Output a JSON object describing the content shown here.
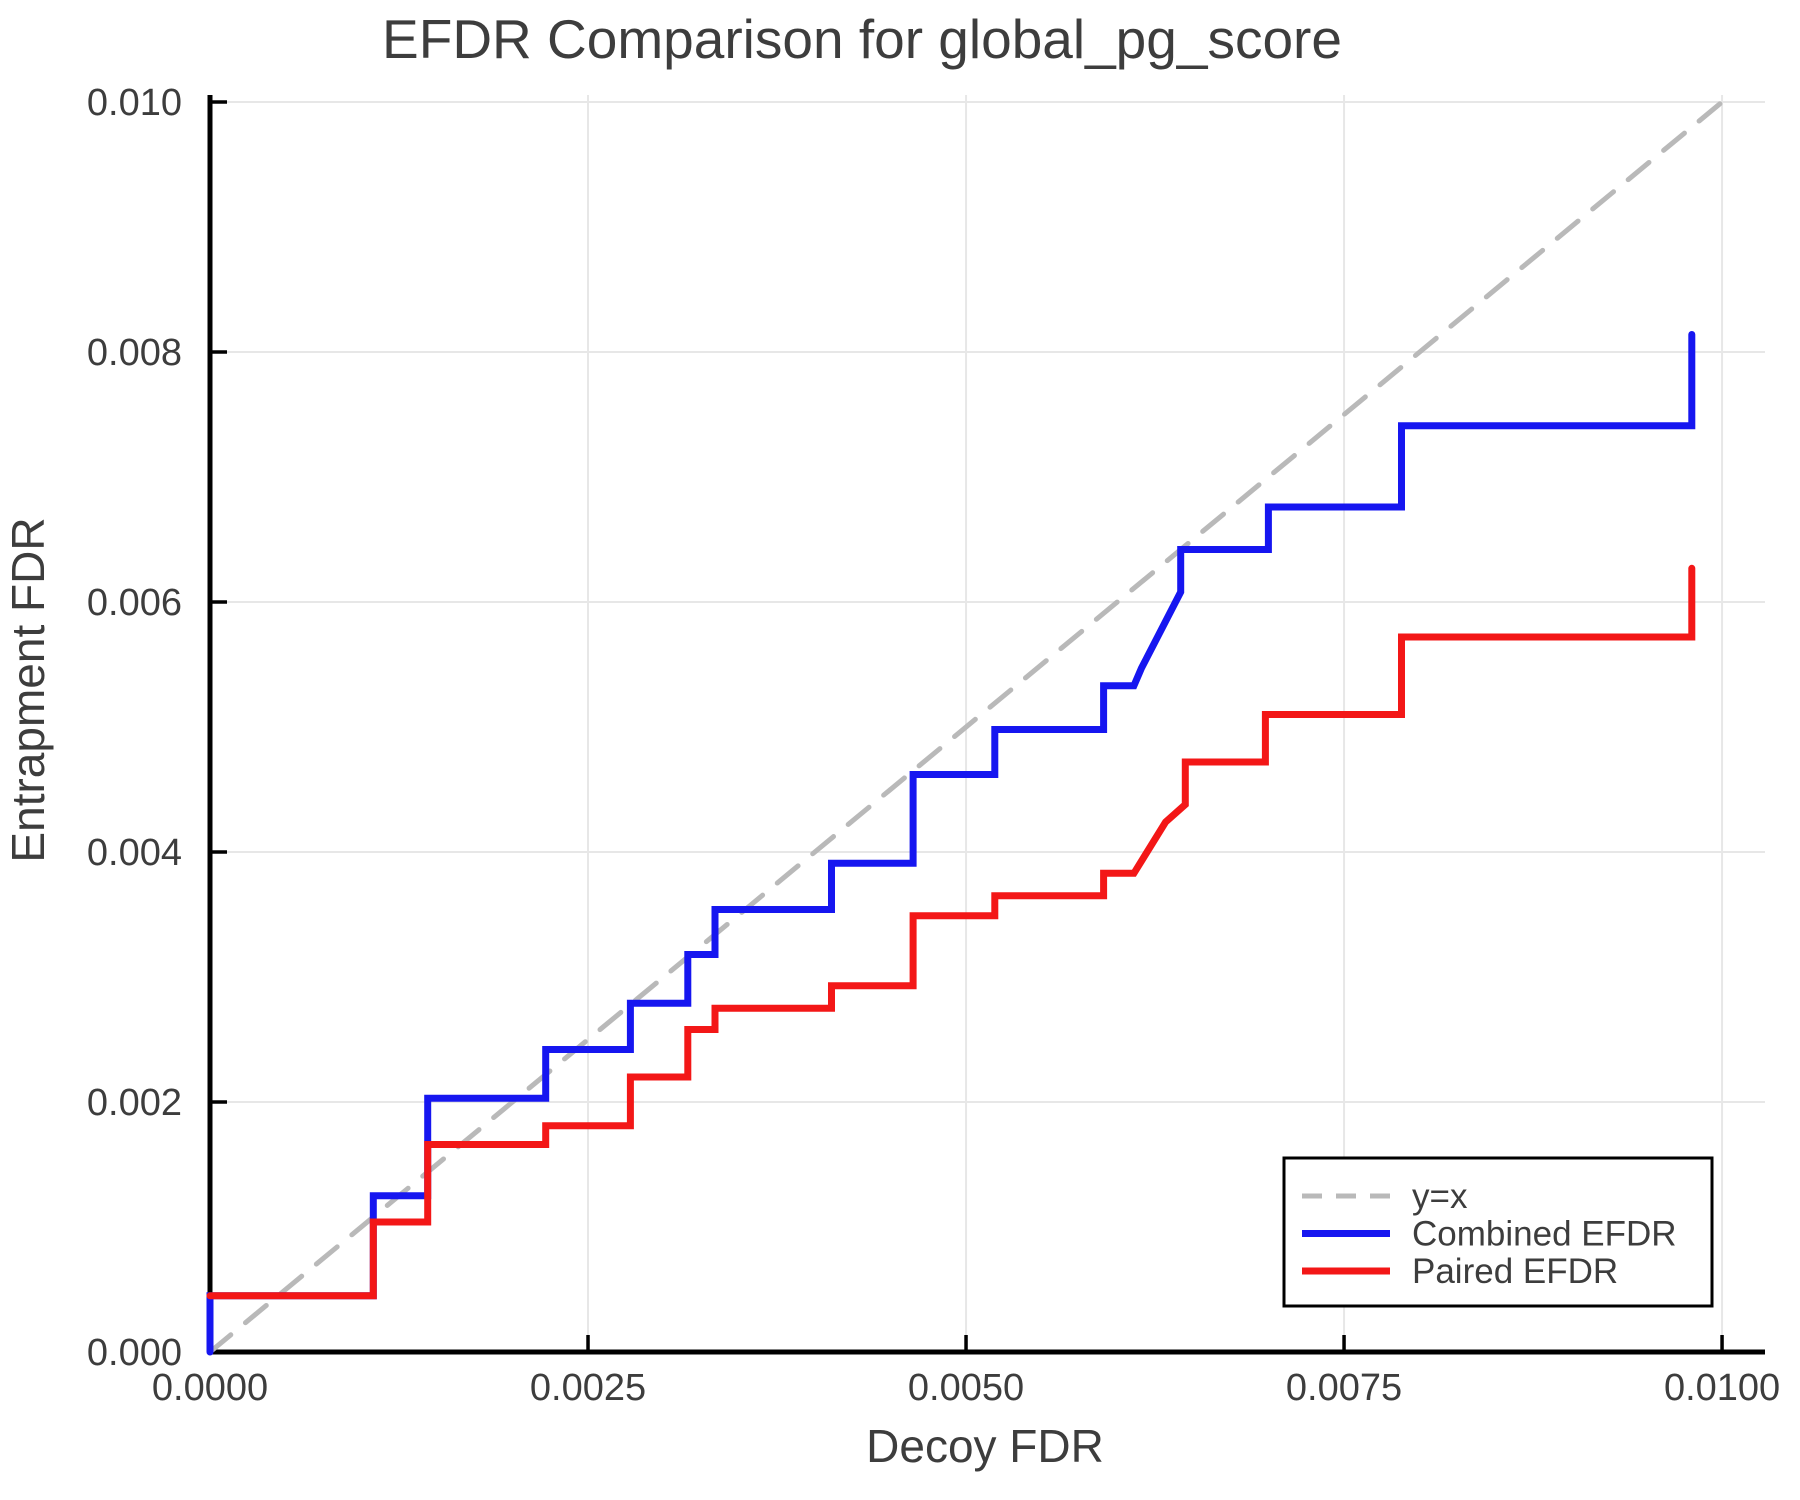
{
  "page": {
    "title": "EFDR Comparison for global_pg_score"
  },
  "chart_data": {
    "type": "line",
    "subtype": "step-comparison",
    "title": "EFDR Comparison for global_pg_score",
    "xlabel": "Decoy FDR",
    "ylabel": "Entrapment FDR",
    "xlim": [
      0,
      0.010284
    ],
    "ylim": [
      0,
      0.010056
    ],
    "grid": true,
    "background_color": "#ffffff",
    "gridline_color": "#e7e7e7",
    "spine_color": "#000000",
    "text_color": "#3d3d3d",
    "legend_position": "lower right",
    "x_ticks": [
      {
        "v": 0.0,
        "label": "0.0000"
      },
      {
        "v": 0.0025,
        "label": "0.0025"
      },
      {
        "v": 0.005,
        "label": "0.0050"
      },
      {
        "v": 0.0075,
        "label": "0.0075"
      },
      {
        "v": 0.01,
        "label": "0.0100"
      }
    ],
    "y_ticks": [
      {
        "v": 0.0,
        "label": "0.000"
      },
      {
        "v": 0.002,
        "label": "0.002"
      },
      {
        "v": 0.004,
        "label": "0.004"
      },
      {
        "v": 0.006,
        "label": "0.006"
      },
      {
        "v": 0.008,
        "label": "0.008"
      },
      {
        "v": 0.01,
        "label": "0.010"
      }
    ],
    "series": [
      {
        "name": "y=x",
        "color": "#b9b9b9",
        "style": "dashed",
        "width": 5,
        "points": [
          [
            0,
            0
          ],
          [
            0.01005,
            0.01005
          ]
        ]
      },
      {
        "name": "Combined EFDR",
        "color": "#1616f0",
        "style": "solid",
        "width": 7,
        "points": [
          [
            0,
            0
          ],
          [
            0,
            0.00045
          ],
          [
            0.00108,
            0.00045
          ],
          [
            0.00108,
            0.00125
          ],
          [
            0.00144,
            0.00125
          ],
          [
            0.00144,
            0.00203
          ],
          [
            0.00222,
            0.00203
          ],
          [
            0.00222,
            0.00242
          ],
          [
            0.00278,
            0.00242
          ],
          [
            0.00278,
            0.00279
          ],
          [
            0.00316,
            0.00279
          ],
          [
            0.00316,
            0.00318
          ],
          [
            0.00334,
            0.00318
          ],
          [
            0.00334,
            0.00354
          ],
          [
            0.00411,
            0.00354
          ],
          [
            0.00411,
            0.00391
          ],
          [
            0.00465,
            0.00391
          ],
          [
            0.00465,
            0.00462
          ],
          [
            0.00519,
            0.00462
          ],
          [
            0.00519,
            0.00498
          ],
          [
            0.00591,
            0.00498
          ],
          [
            0.00591,
            0.00533
          ],
          [
            0.00611,
            0.00533
          ],
          [
            0.00616,
            0.00547
          ],
          [
            0.00642,
            0.00608
          ],
          [
            0.00642,
            0.00642
          ],
          [
            0.007,
            0.00642
          ],
          [
            0.007,
            0.00676
          ],
          [
            0.00788,
            0.00676
          ],
          [
            0.00788,
            0.00741
          ],
          [
            0.0098,
            0.00741
          ],
          [
            0.0098,
            0.00814
          ]
        ]
      },
      {
        "name": "Paired EFDR",
        "color": "#f31717",
        "style": "solid",
        "width": 7,
        "points": [
          [
            0,
            0.00045
          ],
          [
            0.00108,
            0.00045
          ],
          [
            0.00108,
            0.00104
          ],
          [
            0.00144,
            0.00104
          ],
          [
            0.00144,
            0.00166
          ],
          [
            0.00222,
            0.00166
          ],
          [
            0.00222,
            0.00181
          ],
          [
            0.00278,
            0.00181
          ],
          [
            0.00278,
            0.0022
          ],
          [
            0.00316,
            0.0022
          ],
          [
            0.00316,
            0.00258
          ],
          [
            0.00334,
            0.00258
          ],
          [
            0.00334,
            0.00275
          ],
          [
            0.00411,
            0.00275
          ],
          [
            0.00411,
            0.00293
          ],
          [
            0.00465,
            0.00293
          ],
          [
            0.00465,
            0.00349
          ],
          [
            0.00519,
            0.00349
          ],
          [
            0.00519,
            0.00365
          ],
          [
            0.00591,
            0.00365
          ],
          [
            0.00591,
            0.00383
          ],
          [
            0.00611,
            0.00383
          ],
          [
            0.00632,
            0.00424
          ],
          [
            0.00645,
            0.00438
          ],
          [
            0.00645,
            0.00472
          ],
          [
            0.00698,
            0.00472
          ],
          [
            0.00698,
            0.0051
          ],
          [
            0.00788,
            0.0051
          ],
          [
            0.00788,
            0.00572
          ],
          [
            0.0098,
            0.00572
          ],
          [
            0.0098,
            0.00627
          ]
        ]
      }
    ]
  }
}
